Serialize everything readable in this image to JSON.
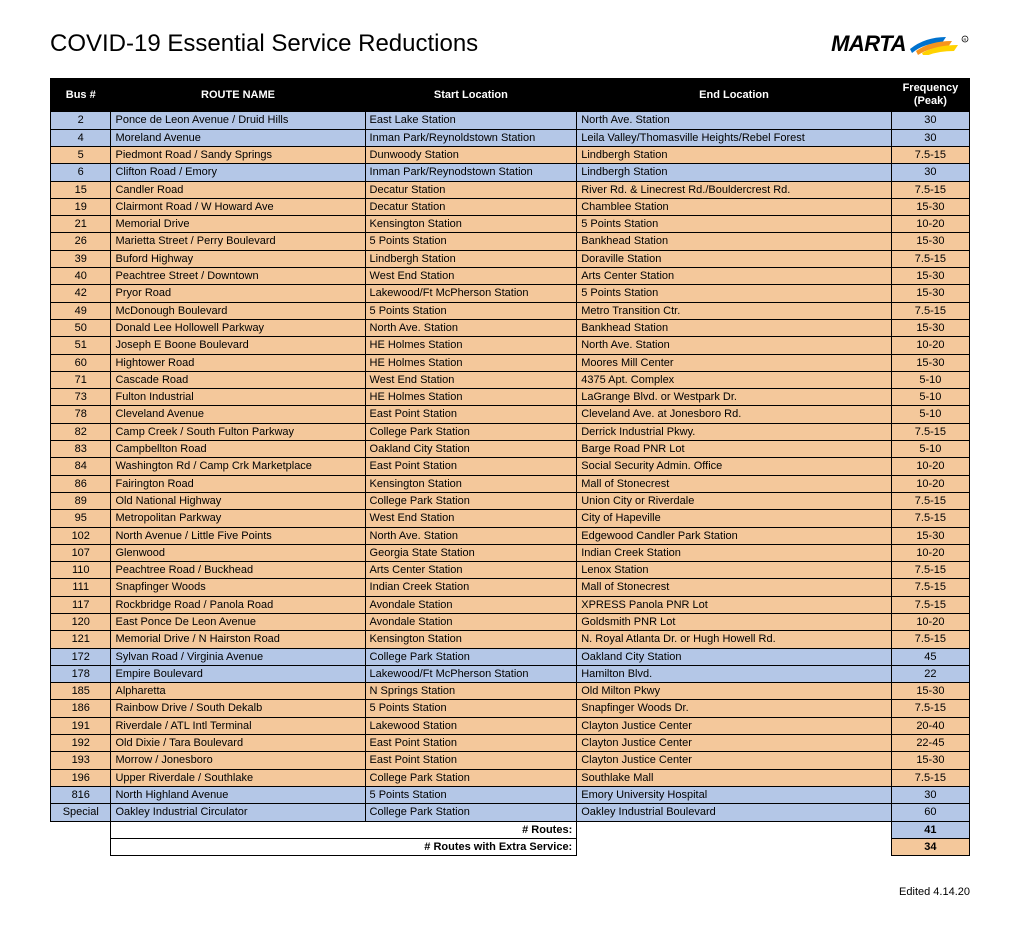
{
  "title": "COVID-19 Essential Service Reductions",
  "logo_text": "MARTA",
  "edited": "Edited 4.14.20",
  "columns": {
    "bus": "Bus #",
    "route": "ROUTE NAME",
    "start": "Start Location",
    "end": "End Location",
    "freq": "Frequency (Peak)"
  },
  "colors": {
    "header_bg": "#000000",
    "header_fg": "#ffffff",
    "orange": "#f4c89b",
    "blue": "#b4c7e7",
    "border": "#000000"
  },
  "rows": [
    {
      "bus": "2",
      "route": "Ponce de Leon Avenue / Druid Hills",
      "start": "East Lake Station",
      "end": "North Ave. Station",
      "freq": "30",
      "cls": "blue"
    },
    {
      "bus": "4",
      "route": "Moreland Avenue",
      "start": "Inman Park/Reynoldstown Station",
      "end": "Leila Valley/Thomasville Heights/Rebel Forest",
      "freq": "30",
      "cls": "blue"
    },
    {
      "bus": "5",
      "route": "Piedmont Road / Sandy Springs",
      "start": "Dunwoody Station",
      "end": "Lindbergh Station",
      "freq": "7.5-15",
      "cls": "orange"
    },
    {
      "bus": "6",
      "route": "Clifton Road / Emory",
      "start": "Inman Park/Reynodstown Station",
      "end": "Lindbergh Station",
      "freq": "30",
      "cls": "blue"
    },
    {
      "bus": "15",
      "route": "Candler Road",
      "start": "Decatur Station",
      "end": "River Rd. & Linecrest Rd./Bouldercrest Rd.",
      "freq": "7.5-15",
      "cls": "orange"
    },
    {
      "bus": "19",
      "route": "Clairmont Road / W Howard Ave",
      "start": "Decatur Station",
      "end": "Chamblee Station",
      "freq": "15-30",
      "cls": "orange"
    },
    {
      "bus": "21",
      "route": "Memorial Drive",
      "start": "Kensington Station",
      "end": "5 Points Station",
      "freq": "10-20",
      "cls": "orange"
    },
    {
      "bus": "26",
      "route": "Marietta Street / Perry Boulevard",
      "start": "5 Points Station",
      "end": "Bankhead Station",
      "freq": "15-30",
      "cls": "orange"
    },
    {
      "bus": "39",
      "route": "Buford Highway",
      "start": "Lindbergh Station",
      "end": "Doraville Station",
      "freq": "7.5-15",
      "cls": "orange"
    },
    {
      "bus": "40",
      "route": "Peachtree Street / Downtown",
      "start": "West End Station",
      "end": "Arts Center Station",
      "freq": "15-30",
      "cls": "orange"
    },
    {
      "bus": "42",
      "route": "Pryor Road",
      "start": "Lakewood/Ft McPherson Station",
      "end": "5 Points Station",
      "freq": "15-30",
      "cls": "orange"
    },
    {
      "bus": "49",
      "route": "McDonough Boulevard",
      "start": "5 Points Station",
      "end": "Metro Transition Ctr.",
      "freq": "7.5-15",
      "cls": "orange"
    },
    {
      "bus": "50",
      "route": "Donald Lee Hollowell Parkway",
      "start": "North Ave. Station",
      "end": "Bankhead Station",
      "freq": "15-30",
      "cls": "orange"
    },
    {
      "bus": "51",
      "route": "Joseph E Boone Boulevard",
      "start": "HE Holmes Station",
      "end": "North Ave. Station",
      "freq": "10-20",
      "cls": "orange"
    },
    {
      "bus": "60",
      "route": "Hightower Road",
      "start": "HE Holmes Station",
      "end": "Moores Mill Center",
      "freq": "15-30",
      "cls": "orange"
    },
    {
      "bus": "71",
      "route": "Cascade Road",
      "start": "West End Station",
      "end": "4375 Apt. Complex",
      "freq": "5-10",
      "cls": "orange"
    },
    {
      "bus": "73",
      "route": "Fulton Industrial",
      "start": "HE Holmes Station",
      "end": "LaGrange Blvd. or Westpark Dr.",
      "freq": "5-10",
      "cls": "orange"
    },
    {
      "bus": "78",
      "route": "Cleveland Avenue",
      "start": "East Point Station",
      "end": "Cleveland Ave. at Jonesboro Rd.",
      "freq": "5-10",
      "cls": "orange"
    },
    {
      "bus": "82",
      "route": "Camp Creek / South Fulton Parkway",
      "start": "College Park Station",
      "end": "Derrick Industrial Pkwy.",
      "freq": "7.5-15",
      "cls": "orange"
    },
    {
      "bus": "83",
      "route": "Campbellton Road",
      "start": "Oakland City Station",
      "end": "Barge Road PNR Lot",
      "freq": "5-10",
      "cls": "orange"
    },
    {
      "bus": "84",
      "route": "Washington Rd / Camp Crk Marketplace",
      "start": "East Point Station",
      "end": "Social Security Admin. Office",
      "freq": "10-20",
      "cls": "orange"
    },
    {
      "bus": "86",
      "route": "Fairington Road",
      "start": "Kensington Station",
      "end": "Mall of Stonecrest",
      "freq": "10-20",
      "cls": "orange"
    },
    {
      "bus": "89",
      "route": "Old National Highway",
      "start": "College Park Station",
      "end": "Union City or Riverdale",
      "freq": "7.5-15",
      "cls": "orange"
    },
    {
      "bus": "95",
      "route": "Metropolitan Parkway",
      "start": "West End Station",
      "end": "City of Hapeville",
      "freq": "7.5-15",
      "cls": "orange"
    },
    {
      "bus": "102",
      "route": "North Avenue / Little Five Points",
      "start": "North Ave. Station",
      "end": "Edgewood Candler Park Station",
      "freq": "15-30",
      "cls": "orange"
    },
    {
      "bus": "107",
      "route": "Glenwood",
      "start": "Georgia State Station",
      "end": "Indian Creek Station",
      "freq": "10-20",
      "cls": "orange"
    },
    {
      "bus": "110",
      "route": "Peachtree Road / Buckhead",
      "start": "Arts Center Station",
      "end": "Lenox Station",
      "freq": "7.5-15",
      "cls": "orange"
    },
    {
      "bus": "111",
      "route": "Snapfinger Woods",
      "start": "Indian Creek Station",
      "end": "Mall of Stonecrest",
      "freq": "7.5-15",
      "cls": "orange"
    },
    {
      "bus": "117",
      "route": "Rockbridge Road / Panola Road",
      "start": "Avondale Station",
      "end": "XPRESS Panola PNR Lot",
      "freq": "7.5-15",
      "cls": "orange"
    },
    {
      "bus": "120",
      "route": "East Ponce De Leon Avenue",
      "start": "Avondale Station",
      "end": "Goldsmith PNR Lot",
      "freq": "10-20",
      "cls": "orange"
    },
    {
      "bus": "121",
      "route": "Memorial Drive / N Hairston Road",
      "start": "Kensington Station",
      "end": "N. Royal Atlanta Dr. or Hugh Howell Rd.",
      "freq": "7.5-15",
      "cls": "orange"
    },
    {
      "bus": "172",
      "route": "Sylvan Road / Virginia Avenue",
      "start": "College Park Station",
      "end": "Oakland City Station",
      "freq": "45",
      "cls": "blue"
    },
    {
      "bus": "178",
      "route": "Empire Boulevard",
      "start": "Lakewood/Ft McPherson Station",
      "end": "Hamilton Blvd.",
      "freq": "22",
      "cls": "blue"
    },
    {
      "bus": "185",
      "route": "Alpharetta",
      "start": "N Springs Station",
      "end": "Old Milton Pkwy",
      "freq": "15-30",
      "cls": "orange"
    },
    {
      "bus": "186",
      "route": "Rainbow Drive / South Dekalb",
      "start": "5 Points Station",
      "end": "Snapfinger Woods Dr.",
      "freq": "7.5-15",
      "cls": "orange"
    },
    {
      "bus": "191",
      "route": "Riverdale / ATL Intl Terminal",
      "start": "Lakewood Station",
      "end": "Clayton Justice Center",
      "freq": "20-40",
      "cls": "orange"
    },
    {
      "bus": "192",
      "route": "Old Dixie / Tara Boulevard",
      "start": "East Point Station",
      "end": "Clayton Justice Center",
      "freq": "22-45",
      "cls": "orange"
    },
    {
      "bus": "193",
      "route": "Morrow / Jonesboro",
      "start": "East Point Station",
      "end": "Clayton Justice Center",
      "freq": "15-30",
      "cls": "orange"
    },
    {
      "bus": "196",
      "route": "Upper Riverdale / Southlake",
      "start": "College Park Station",
      "end": "Southlake Mall",
      "freq": "7.5-15",
      "cls": "orange"
    },
    {
      "bus": "816",
      "route": "North Highland Avenue",
      "start": "5 Points Station",
      "end": "Emory University Hospital",
      "freq": "30",
      "cls": "blue"
    },
    {
      "bus": "Special",
      "route": "Oakley Industrial Circulator",
      "start": "College Park Station",
      "end": "Oakley Industrial Boulevard",
      "freq": "60",
      "cls": "blue"
    }
  ],
  "summary": [
    {
      "label": "# Routes:",
      "value": "41",
      "cls": "blue-val"
    },
    {
      "label": "# Routes with Extra Service:",
      "value": "34",
      "cls": "orange-val"
    }
  ]
}
